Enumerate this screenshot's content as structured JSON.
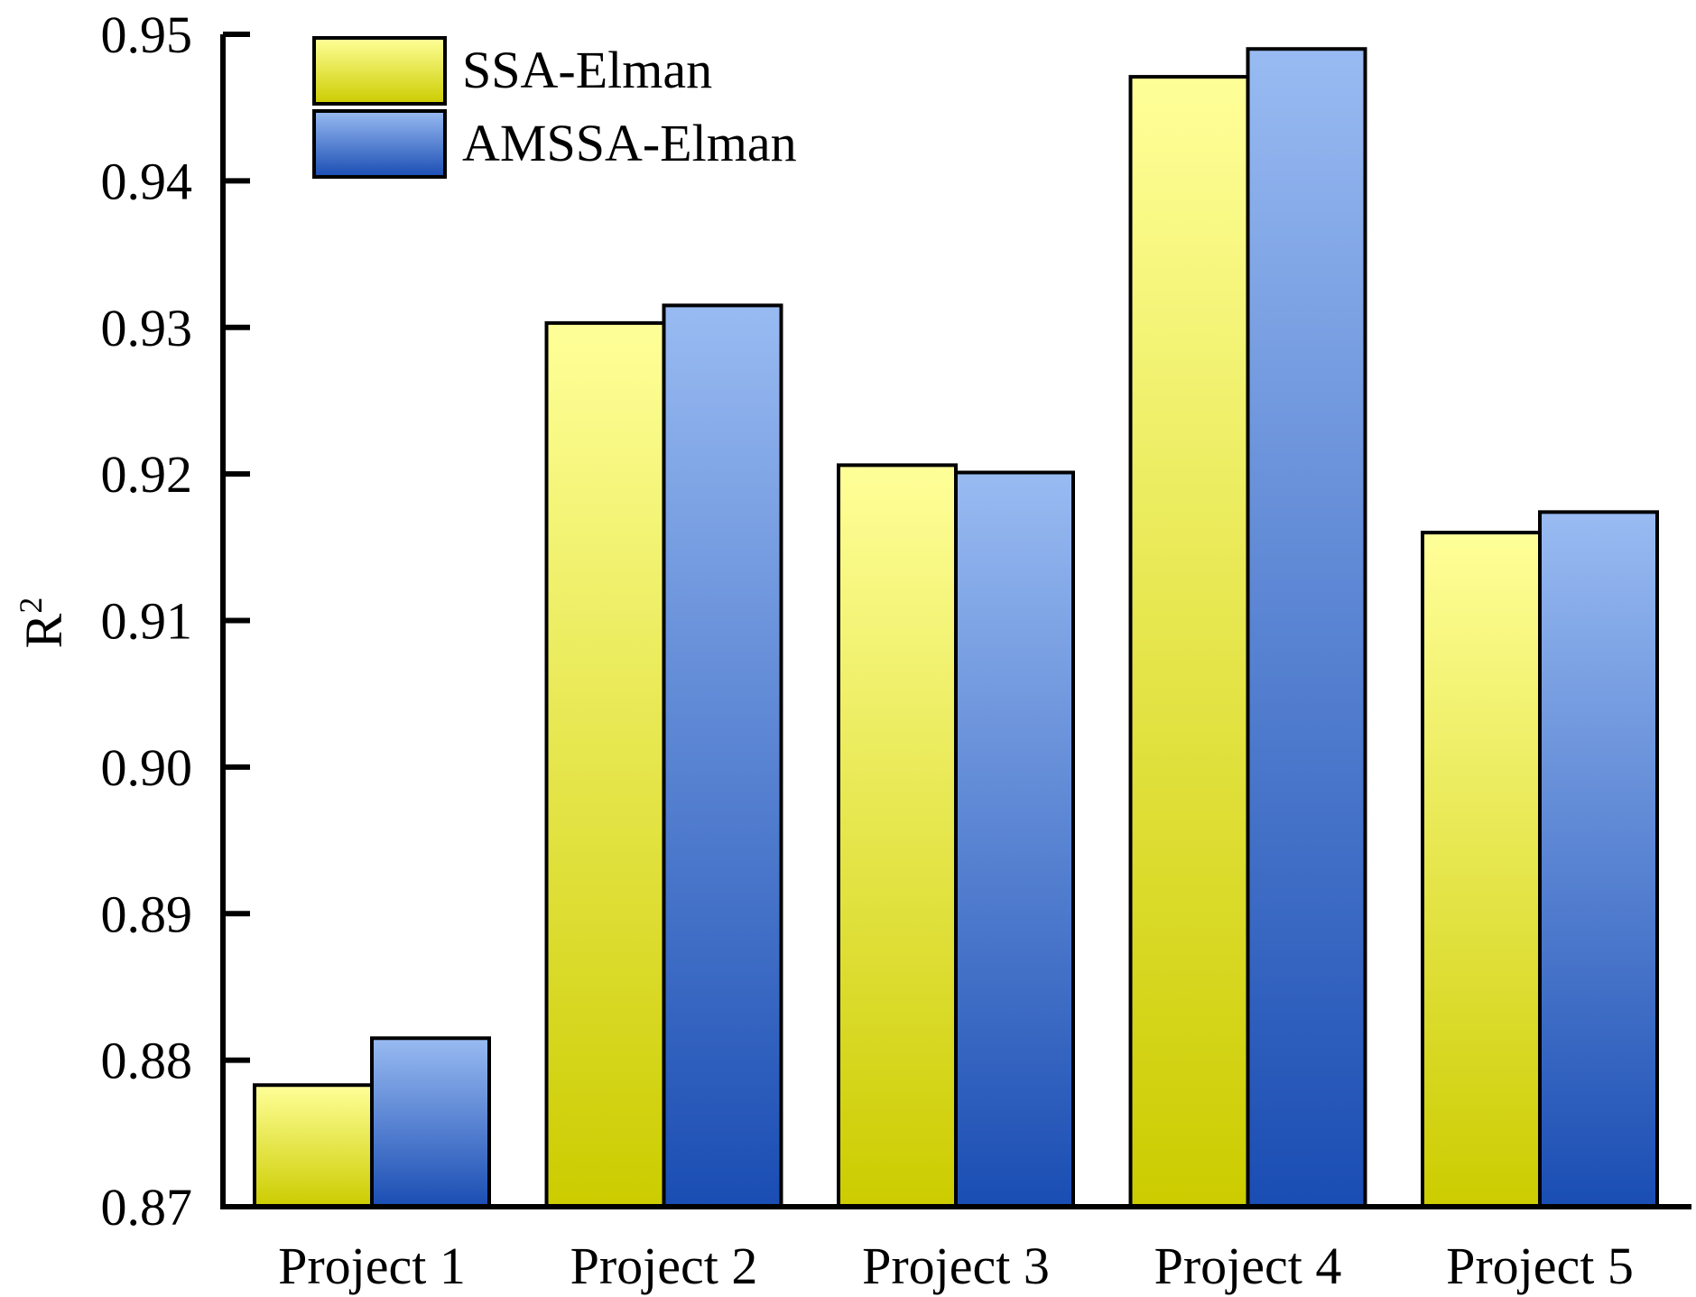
{
  "chart_data": {
    "type": "bar",
    "title": "",
    "xlabel": "",
    "ylabel": "R",
    "ylabel_superscript": "2",
    "categories": [
      "Project 1",
      "Project 2",
      "Project 3",
      "Project 4",
      "Project 5"
    ],
    "series": [
      {
        "name": "SSA-Elman",
        "values": [
          0.8783,
          0.9303,
          0.9206,
          0.9471,
          0.916
        ],
        "color_top": "#ffff99",
        "color_bottom": "#cccc00"
      },
      {
        "name": "AMSSA-Elman",
        "values": [
          0.8815,
          0.9315,
          0.9201,
          0.949,
          0.9174
        ],
        "color_top": "#99bbf2",
        "color_bottom": "#1a4db3"
      }
    ],
    "ylim": [
      0.87,
      0.95
    ],
    "yticks": [
      "0.87",
      "0.88",
      "0.89",
      "0.90",
      "0.91",
      "0.92",
      "0.93",
      "0.94",
      "0.95"
    ],
    "ytick_values": [
      0.87,
      0.88,
      0.89,
      0.9,
      0.91,
      0.92,
      0.93,
      0.94,
      0.95
    ],
    "legend_position": "top-left",
    "grid": false
  }
}
